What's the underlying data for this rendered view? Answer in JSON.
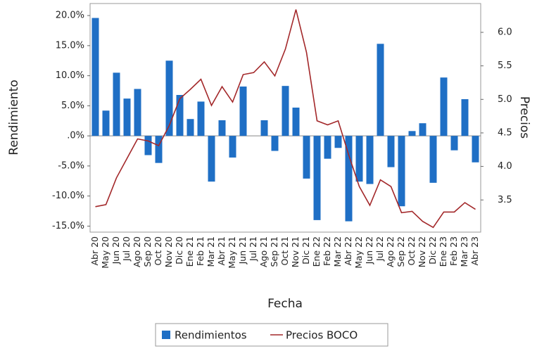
{
  "chart_data": {
    "type": "bar_line",
    "x_label": "Fecha",
    "y_label": "Rendimiento",
    "y2_label": "Precios",
    "categories": [
      "Abr 20",
      "May 20",
      "Jun 20",
      "Jul 20",
      "Ago 20",
      "Sep 20",
      "Oct 20",
      "Nov 20",
      "Dic 20",
      "Ene 21",
      "Feb 21",
      "Mar 21",
      "Abr 21",
      "May 21",
      "Jun 21",
      "Jul 21",
      "Ago 21",
      "Sep 21",
      "Oct 21",
      "Nov 21",
      "Dic 21",
      "Ene 22",
      "Feb 22",
      "Mar 22",
      "Abr 22",
      "May 22",
      "Jun 22",
      "Jul 22",
      "Ago 22",
      "Sep 22",
      "Oct 22",
      "Nov 22",
      "Dic 22",
      "Ene 23",
      "Feb 23",
      "Mar 23",
      "Abr 23"
    ],
    "series": [
      {
        "name": "Rendimientos",
        "type": "bar",
        "color": "#1f6fc5",
        "values": [
          19.6,
          4.2,
          10.5,
          6.2,
          7.8,
          -3.2,
          -4.5,
          12.5,
          6.8,
          2.8,
          5.7,
          -7.6,
          2.6,
          -3.6,
          8.2,
          0,
          2.6,
          -2.5,
          8.3,
          4.7,
          -7.1,
          -14.0,
          -3.8,
          -2.0,
          -14.2,
          -7.6,
          -8.0,
          15.3,
          -5.2,
          -11.7,
          0.8,
          2.1,
          -7.8,
          9.7,
          -2.4,
          6.1,
          -4.4
        ]
      },
      {
        "name": "Precios BOCO",
        "type": "line",
        "axis": "y2",
        "color": "#a3282a",
        "values": [
          3.4,
          3.43,
          3.83,
          4.12,
          4.41,
          4.38,
          4.31,
          4.61,
          5.01,
          5.15,
          5.3,
          4.91,
          5.19,
          4.96,
          5.37,
          5.4,
          5.56,
          5.35,
          5.75,
          6.34,
          5.7,
          4.68,
          4.62,
          4.68,
          4.17,
          3.7,
          3.42,
          3.8,
          3.7,
          3.31,
          3.33,
          3.18,
          3.09,
          3.32,
          3.32,
          3.46,
          3.36
        ]
      }
    ],
    "ylim": [
      -16,
      22
    ],
    "yticks": [
      {
        "value": 20,
        "label": "20.0%"
      },
      {
        "value": 15,
        "label": "15.0%"
      },
      {
        "value": 10,
        "label": "10.0%"
      },
      {
        "value": 5,
        "label": "5.0%"
      },
      {
        "value": 0,
        "label": ".0%"
      },
      {
        "value": -5,
        "label": "-5.0%"
      },
      {
        "value": -10,
        "label": "-10.0%"
      },
      {
        "value": -15,
        "label": "-15.0%"
      }
    ],
    "y2lim": [
      3.02,
      6.43
    ],
    "y2ticks": [
      3.5,
      {
        "value": 4,
        "label": "4.0"
      },
      4.5,
      {
        "value": 5,
        "label": "5.0"
      },
      5.5,
      {
        "value": 6,
        "label": "6.0"
      }
    ],
    "legend": "bottom"
  }
}
